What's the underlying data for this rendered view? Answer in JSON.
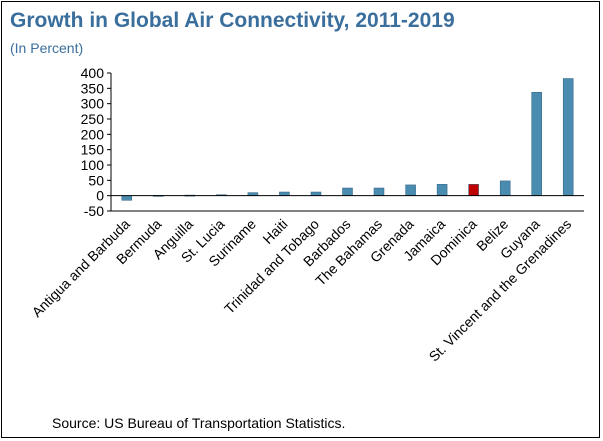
{
  "header": {
    "title": "Growth in Global Air Connectivity, 2011-2019",
    "subtitle": "(In Percent)"
  },
  "footer": {
    "source": "Source: US Bureau of Transportation Statistics."
  },
  "colors": {
    "bar": "#4a8bb0",
    "highlight": "#c00000",
    "title": "#3a6e9d"
  },
  "chart_data": {
    "type": "bar",
    "categories": [
      "Antigua and Barbuda",
      "Bermuda",
      "Anguilla",
      "St. Lucia",
      "Suriname",
      "Haiti",
      "Trinidad and Tobago",
      "Barbados",
      "The Bahamas",
      "Grenada",
      "Jamaica",
      "Dominica",
      "Belize",
      "Guyana",
      "St. Vincent and the Grenadines"
    ],
    "values": [
      -15,
      1,
      2,
      3,
      10,
      12,
      12,
      25,
      25,
      35,
      37,
      37,
      48,
      337,
      382
    ],
    "highlight": "Dominica",
    "ylim": [
      -50,
      400
    ],
    "yticks": [
      -50,
      0,
      50,
      100,
      150,
      200,
      250,
      300,
      350,
      400
    ],
    "xlabel": "",
    "ylabel": "",
    "grid": false,
    "legend": "none"
  }
}
